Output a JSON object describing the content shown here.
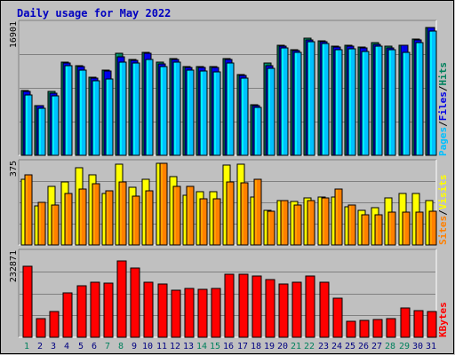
{
  "title": "Daily usage for May 2022",
  "colors": {
    "hits": "#00805c",
    "files": "#0000e6",
    "pages": "#00c0ff",
    "visits": "#ffff00",
    "sites": "#ff8000",
    "kbytes": "#ff0000",
    "title": "#0000c0",
    "weekend": "#00805c",
    "weekday": "#000080"
  },
  "legend": {
    "pages": "Pages",
    "files": "Files",
    "hits": "Hits",
    "sep": "/",
    "sites": "Sites",
    "visits": "Visits",
    "kbytes": "KBytes"
  },
  "chart_data": [
    {
      "type": "bar",
      "title": "Daily usage for May 2022",
      "ylabel": "16901",
      "ylim": [
        0,
        16901
      ],
      "categories": [
        "1",
        "2",
        "3",
        "4",
        "5",
        "6",
        "7",
        "8",
        "9",
        "10",
        "11",
        "12",
        "13",
        "14",
        "15",
        "16",
        "17",
        "18",
        "19",
        "20",
        "21",
        "22",
        "23",
        "24",
        "25",
        "26",
        "27",
        "28",
        "29",
        "30",
        "31"
      ],
      "weekend": [
        1,
        7,
        8,
        14,
        15,
        21,
        22,
        28,
        29
      ],
      "series": [
        {
          "name": "Hits",
          "values": [
            8350,
            6450,
            8200,
            12000,
            11550,
            10100,
            11000,
            13100,
            12350,
            13200,
            11950,
            12400,
            11450,
            11400,
            11400,
            12450,
            10400,
            6550,
            11850,
            14200,
            13600,
            15050,
            14750,
            14000,
            14200,
            13900,
            14500,
            14000,
            14200,
            15000,
            16400
          ]
        },
        {
          "name": "Files",
          "values": [
            8200,
            6350,
            8050,
            11900,
            11400,
            9950,
            10850,
            12650,
            12200,
            13100,
            11750,
            12300,
            11300,
            11250,
            11300,
            12300,
            10300,
            6450,
            11550,
            14100,
            13500,
            14900,
            14650,
            13900,
            14050,
            13800,
            14300,
            13850,
            14200,
            14900,
            16400
          ]
        },
        {
          "name": "Pages",
          "values": [
            7750,
            6000,
            7650,
            11500,
            11000,
            9550,
            9800,
            12000,
            11900,
            12350,
            11400,
            11950,
            10950,
            10850,
            10750,
            11850,
            9950,
            6150,
            11150,
            13800,
            13200,
            14650,
            14350,
            13600,
            13700,
            13400,
            14000,
            13600,
            13300,
            14500,
            16000
          ]
        }
      ]
    },
    {
      "type": "bar",
      "ylabel": "375",
      "ylim": [
        0,
        375
      ],
      "categories": [
        "1",
        "2",
        "3",
        "4",
        "5",
        "6",
        "7",
        "8",
        "9",
        "10",
        "11",
        "12",
        "13",
        "14",
        "15",
        "16",
        "17",
        "18",
        "19",
        "20",
        "21",
        "22",
        "23",
        "24",
        "25",
        "26",
        "27",
        "28",
        "29",
        "30",
        "31"
      ],
      "series": [
        {
          "name": "Visits",
          "values": [
            300,
            180,
            270,
            290,
            355,
            320,
            235,
            370,
            265,
            300,
            375,
            315,
            230,
            245,
            245,
            365,
            370,
            220,
            160,
            205,
            200,
            215,
            220,
            220,
            175,
            160,
            170,
            215,
            235,
            235,
            205
          ]
        },
        {
          "name": "Sites",
          "values": [
            320,
            195,
            185,
            235,
            255,
            280,
            250,
            290,
            225,
            250,
            380,
            270,
            270,
            210,
            210,
            290,
            285,
            300,
            155,
            205,
            185,
            205,
            215,
            255,
            185,
            140,
            140,
            150,
            150,
            150,
            155
          ]
        }
      ]
    },
    {
      "type": "bar",
      "ylabel": "232871",
      "ylim": [
        0,
        232871
      ],
      "categories": [
        "1",
        "2",
        "3",
        "4",
        "5",
        "6",
        "7",
        "8",
        "9",
        "10",
        "11",
        "12",
        "13",
        "14",
        "15",
        "16",
        "17",
        "18",
        "19",
        "20",
        "21",
        "22",
        "23",
        "24",
        "25",
        "26",
        "27",
        "28",
        "29",
        "30",
        "31"
      ],
      "series": [
        {
          "name": "KBytes",
          "values": [
            195000,
            52000,
            70000,
            122000,
            142000,
            151000,
            149000,
            212000,
            192000,
            153000,
            146000,
            131000,
            136000,
            133000,
            134000,
            175000,
            175000,
            170000,
            159000,
            147000,
            153000,
            169000,
            151000,
            108000,
            44000,
            47000,
            48000,
            51000,
            80000,
            74000,
            70000
          ]
        }
      ]
    }
  ]
}
